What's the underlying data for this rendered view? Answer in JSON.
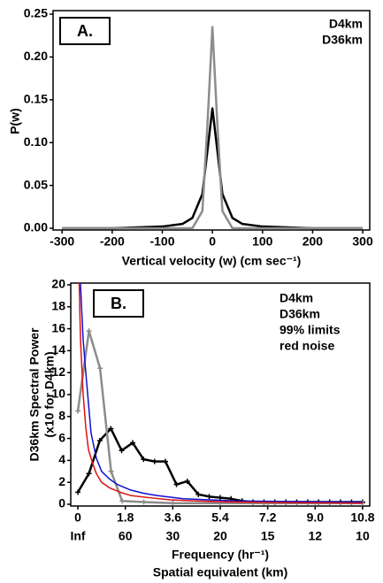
{
  "chart_data": [
    {
      "type": "line",
      "panel_label": "A.",
      "x_label": "Vertical velocity (w) (cm sec⁻¹)",
      "y_label": "P(w)",
      "xlim": [
        -318,
        314
      ],
      "xticks": [
        -300,
        -200,
        -100,
        0,
        100,
        200,
        300
      ],
      "ylim": [
        0,
        0.25
      ],
      "yticks": [
        {
          "value": 0,
          "label": "0.00"
        },
        0.05,
        {
          "value": 0.1,
          "label": "0.10"
        },
        0.15,
        {
          "value": 0.2,
          "label": "0.20"
        },
        0.25
      ],
      "legend": "top-right",
      "series": [
        {
          "name": "D4km",
          "color": "#000000",
          "x": [
            -300,
            -200,
            -100,
            -60,
            -40,
            -20,
            -10,
            0,
            10,
            20,
            40,
            60,
            100,
            200,
            300
          ],
          "values": [
            0,
            0,
            0.002,
            0.005,
            0.012,
            0.04,
            0.09,
            0.14,
            0.09,
            0.04,
            0.012,
            0.005,
            0.002,
            0,
            0
          ]
        },
        {
          "name": "D36km",
          "color": "#8c8c8c",
          "x": [
            -300,
            -200,
            -100,
            -40,
            -20,
            -10,
            0,
            10,
            20,
            40,
            100,
            200,
            300
          ],
          "values": [
            0,
            0,
            0,
            0,
            0.02,
            0.12,
            0.235,
            0.12,
            0.02,
            0,
            0,
            0,
            0
          ]
        }
      ]
    },
    {
      "type": "line",
      "panel_label": "B.",
      "x_label": "Frequency (hr⁻¹)",
      "x2_label": "Spatial equivalent (km)",
      "y_label": "D36km Spectral Power",
      "y_label_2": "(x10 for D4km)",
      "xlim": [
        -0.27,
        11.07
      ],
      "xticks": [
        0,
        1.8,
        3.6,
        5.4,
        7.2,
        {
          "value": 9,
          "label": "9.0"
        },
        10.8
      ],
      "x2ticklabels": [
        "Inf",
        "60",
        "30",
        "20",
        "15",
        "12",
        "10"
      ],
      "ylim": [
        0,
        20
      ],
      "yticks": [
        0,
        2,
        4,
        6,
        8,
        10,
        12,
        14,
        16,
        18,
        20
      ],
      "legend": "top-right",
      "series": [
        {
          "name": "D4km",
          "color": "#000000",
          "markers": true,
          "x": [
            0,
            0.42,
            0.83,
            1.25,
            1.66,
            2.08,
            2.49,
            2.91,
            3.32,
            3.74,
            4.15,
            4.57,
            4.98,
            5.4,
            5.81,
            6.23,
            6.64,
            7.06,
            7.47,
            7.89,
            8.3,
            8.72,
            9.13,
            9.55,
            9.96,
            10.38,
            10.8
          ],
          "values": [
            1.1,
            2.8,
            5.8,
            6.9,
            4.9,
            5.6,
            4.1,
            3.9,
            3.9,
            1.8,
            2.1,
            0.9,
            0.7,
            0.6,
            0.5,
            0.3,
            0.2,
            0.2,
            0.2,
            0.2,
            0.2,
            0.2,
            0.2,
            0.2,
            0.2,
            0.2,
            0.2
          ]
        },
        {
          "name": "D36km",
          "color": "#8c8c8c",
          "markers": true,
          "x": [
            0,
            0.42,
            0.84,
            1.26,
            1.68,
            2.5,
            3.6,
            5.4,
            7.2,
            9,
            10.8
          ],
          "values": [
            8.5,
            15.8,
            12.4,
            3,
            0.3,
            0.2,
            0.1,
            0.1,
            0.1,
            0.1,
            0.1
          ]
        },
        {
          "name": "99% limits",
          "color": "#1010d0",
          "x": [
            0.05,
            0.1,
            0.2,
            0.3,
            0.5,
            0.7,
            0.9,
            1.2,
            1.5,
            2,
            2.5,
            3,
            4,
            5,
            6,
            8,
            10.8
          ],
          "values": [
            26,
            20,
            15,
            12,
            6.5,
            4.2,
            3,
            2.3,
            1.8,
            1.3,
            1,
            0.8,
            0.5,
            0.4,
            0.3,
            0.25,
            0.2
          ]
        },
        {
          "name": "red noise",
          "color": "#e01010",
          "x": [
            0.02,
            0.05,
            0.1,
            0.2,
            0.3,
            0.4,
            0.55,
            0.7,
            0.9,
            1.2,
            1.6,
            2,
            2.7,
            3.5,
            4.5,
            6,
            8,
            10.8
          ],
          "values": [
            26,
            20,
            15,
            10,
            7,
            5,
            3.8,
            2.8,
            2,
            1.5,
            1.1,
            0.8,
            0.6,
            0.4,
            0.3,
            0.2,
            0.15,
            0.1
          ]
        }
      ]
    }
  ]
}
